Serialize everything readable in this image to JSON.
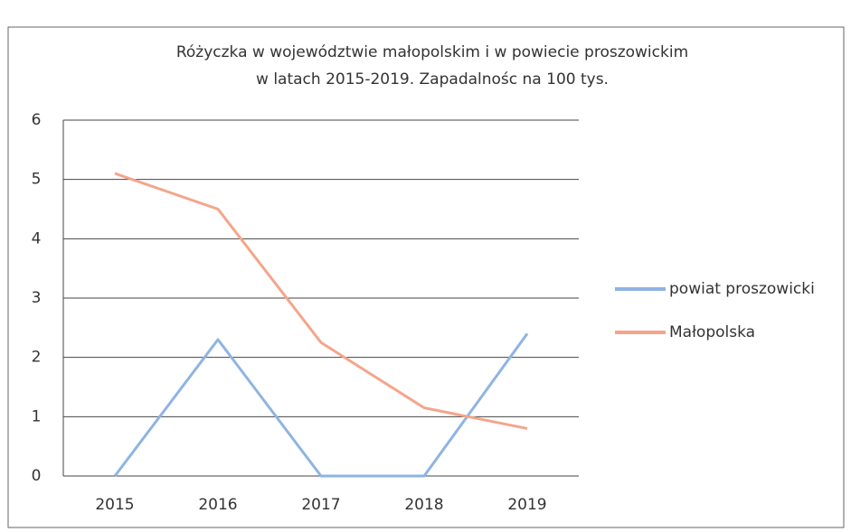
{
  "chart_data": {
    "type": "line",
    "title": [
      "Różyczka w województwie małopolskim i w powiecie proszowickim",
      "w latach 2015-2019. Zapadalnośc na 100 tys."
    ],
    "categories": [
      "2015",
      "2016",
      "2017",
      "2018",
      "2019"
    ],
    "series": [
      {
        "name": "powiat proszowicki",
        "color": "#8fb4e3",
        "values": [
          0,
          2.3,
          0,
          0,
          2.4
        ]
      },
      {
        "name": "Małopolska",
        "color": "#f4a58a",
        "values": [
          5.1,
          4.5,
          2.25,
          1.15,
          0.8
        ]
      }
    ],
    "ylim": [
      0,
      6
    ],
    "yticks": [
      0,
      1,
      2,
      3,
      4,
      5,
      6
    ],
    "grid": true,
    "legend": "right"
  }
}
